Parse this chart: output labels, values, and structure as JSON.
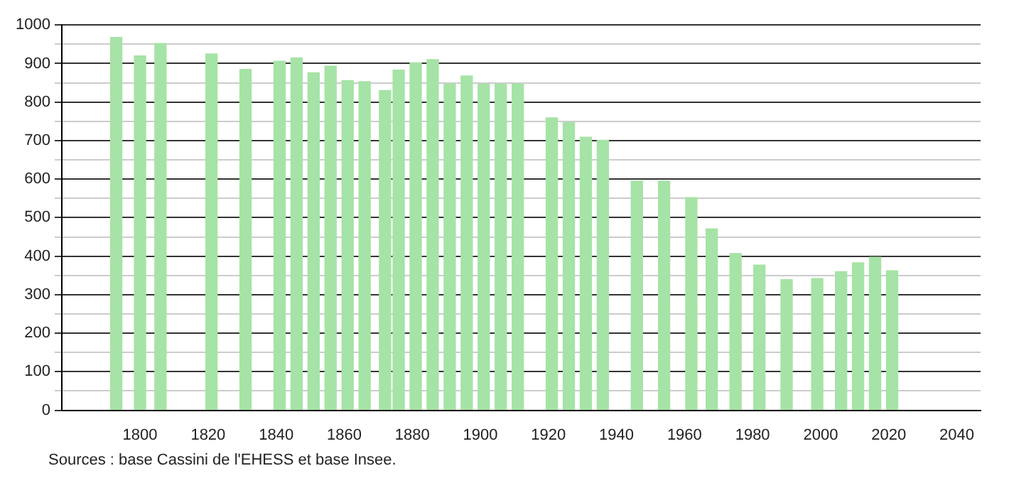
{
  "chart_data": {
    "type": "bar",
    "x": [
      1793,
      1800,
      1806,
      1821,
      1831,
      1841,
      1846,
      1851,
      1856,
      1861,
      1866,
      1872,
      1876,
      1881,
      1886,
      1891,
      1896,
      1901,
      1906,
      1911,
      1921,
      1926,
      1931,
      1936,
      1946,
      1954,
      1962,
      1968,
      1975,
      1982,
      1990,
      1999,
      2006,
      2011,
      2016,
      2021
    ],
    "values": [
      968,
      920,
      952,
      925,
      885,
      906,
      915,
      876,
      893,
      856,
      853,
      830,
      883,
      902,
      910,
      847,
      868,
      847,
      847,
      847,
      759,
      747,
      709,
      701,
      595,
      595,
      552,
      471,
      407,
      377,
      339,
      342,
      360,
      383,
      397,
      362
    ],
    "color": "#a6e3a6",
    "xlim": [
      1777,
      2047
    ],
    "xticks": [
      1800,
      1820,
      1840,
      1860,
      1880,
      1900,
      1920,
      1940,
      1960,
      1980,
      2000,
      2020,
      2040
    ],
    "ylim": [
      0,
      1000
    ],
    "yticks": [
      0,
      {
        "value": 50,
        "label": null
      },
      100,
      {
        "value": 150,
        "label": null
      },
      200,
      {
        "value": 250,
        "label": null
      },
      300,
      {
        "value": 350,
        "label": null
      },
      400,
      {
        "value": 450,
        "label": null
      },
      500,
      {
        "value": 550,
        "label": null
      },
      600,
      {
        "value": 650,
        "label": null
      },
      700,
      {
        "value": 750,
        "label": null
      },
      800,
      {
        "value": 850,
        "label": null
      },
      900,
      {
        "value": 950,
        "label": null
      },
      1000
    ],
    "grid": "y",
    "annotations": [
      "Sources : base Cassini de l'EHESS et base Insee."
    ]
  }
}
